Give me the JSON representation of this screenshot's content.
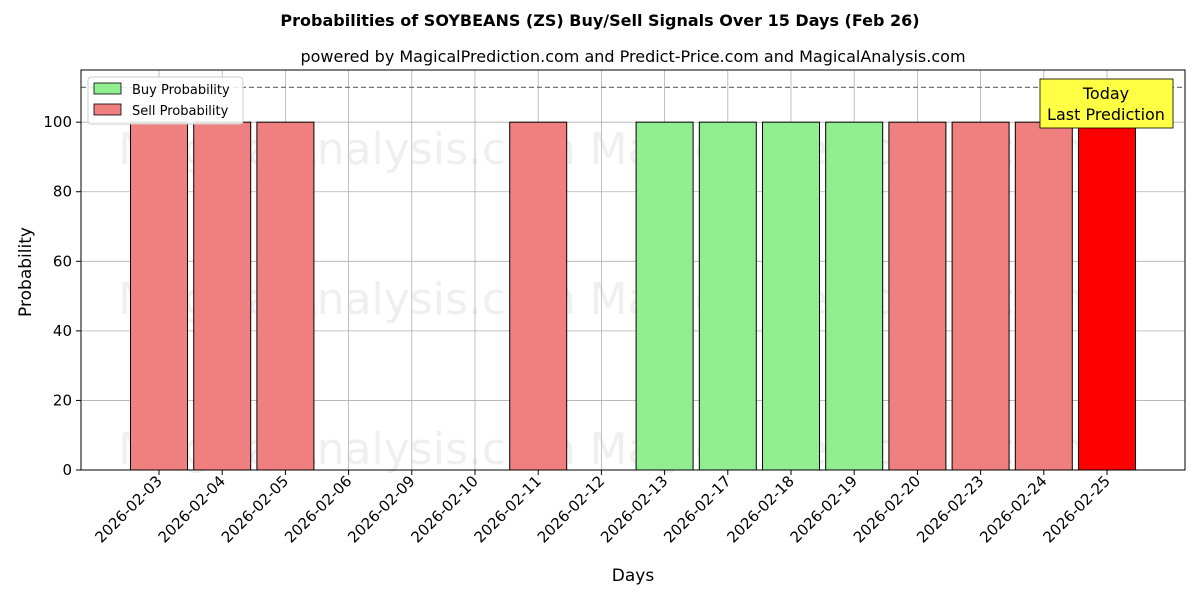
{
  "chart_data": {
    "type": "bar",
    "title": "Probabilities of SOYBEANS (ZS) Buy/Sell Signals Over 15 Days (Feb 26)",
    "subtitle": "powered by MagicalPrediction.com and Predict-Price.com and MagicalAnalysis.com",
    "xlabel": "Days",
    "ylabel": "Probability",
    "ylim": [
      0,
      115
    ],
    "yticks": [
      0,
      20,
      40,
      60,
      80,
      100
    ],
    "reference_line": 110,
    "grid": true,
    "legend_position": "top-left",
    "categories": [
      "2026-02-03",
      "2026-02-04",
      "2026-02-05",
      "2026-02-06",
      "2026-02-09",
      "2026-02-10",
      "2026-02-11",
      "2026-02-12",
      "2026-02-13",
      "2026-02-17",
      "2026-02-18",
      "2026-02-19",
      "2026-02-20",
      "2026-02-23",
      "2026-02-24",
      "2026-02-25"
    ],
    "series": [
      {
        "name": "Buy Probability",
        "color": "#90ee90",
        "values": [
          0,
          0,
          0,
          0,
          0,
          0,
          0,
          0,
          100,
          100,
          100,
          100,
          0,
          0,
          0,
          0
        ]
      },
      {
        "name": "Sell Probability",
        "color": "#f08080",
        "values": [
          100,
          100,
          100,
          0,
          0,
          0,
          100,
          0,
          0,
          0,
          0,
          0,
          100,
          100,
          100,
          100
        ]
      }
    ],
    "highlight": {
      "category": "2026-02-25",
      "color": "#ff0000"
    },
    "annotation": {
      "line1": "Today",
      "line2": "Last Prediction",
      "color": "#ffff44"
    },
    "watermarks": [
      "MagicalAnalysis.com",
      "MagicalPrediction.com"
    ]
  }
}
